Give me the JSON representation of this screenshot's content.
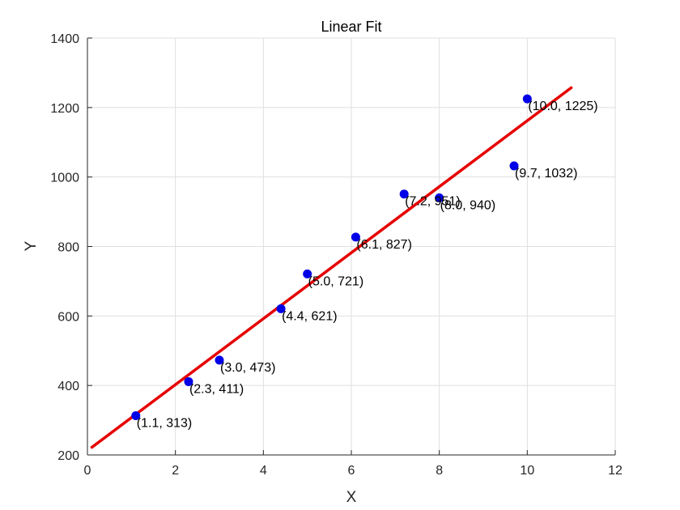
{
  "chart_data": {
    "type": "scatter",
    "title": "Linear Fit",
    "xlabel": "X",
    "ylabel": "Y",
    "xlim": [
      0,
      12
    ],
    "ylim": [
      200,
      1400
    ],
    "xticks": [
      0,
      2,
      4,
      6,
      8,
      10,
      12
    ],
    "yticks": [
      200,
      400,
      600,
      800,
      1000,
      1200,
      1400
    ],
    "grid": true,
    "series": [
      {
        "type": "scatter",
        "color": "#0000e6",
        "points": [
          {
            "x": 1.1,
            "y": 313,
            "label": "(1.1, 313)"
          },
          {
            "x": 2.3,
            "y": 411,
            "label": "(2.3, 411)"
          },
          {
            "x": 3.0,
            "y": 473,
            "label": "(3.0, 473)"
          },
          {
            "x": 4.4,
            "y": 621,
            "label": "(4.4, 621)"
          },
          {
            "x": 5.0,
            "y": 721,
            "label": "(5.0, 721)"
          },
          {
            "x": 6.1,
            "y": 827,
            "label": "(6.1, 827)"
          },
          {
            "x": 7.2,
            "y": 951,
            "label": "(7.2, 951)"
          },
          {
            "x": 8.0,
            "y": 940,
            "label": "(8.0, 940)"
          },
          {
            "x": 9.7,
            "y": 1032,
            "label": "(9.7, 1032)"
          },
          {
            "x": 10.0,
            "y": 1225,
            "label": "(10.0, 1225)"
          }
        ]
      },
      {
        "type": "line",
        "color": "#e60000",
        "points": [
          {
            "x": 0.1,
            "y": 222
          },
          {
            "x": 11.0,
            "y": 1257
          }
        ]
      }
    ]
  }
}
